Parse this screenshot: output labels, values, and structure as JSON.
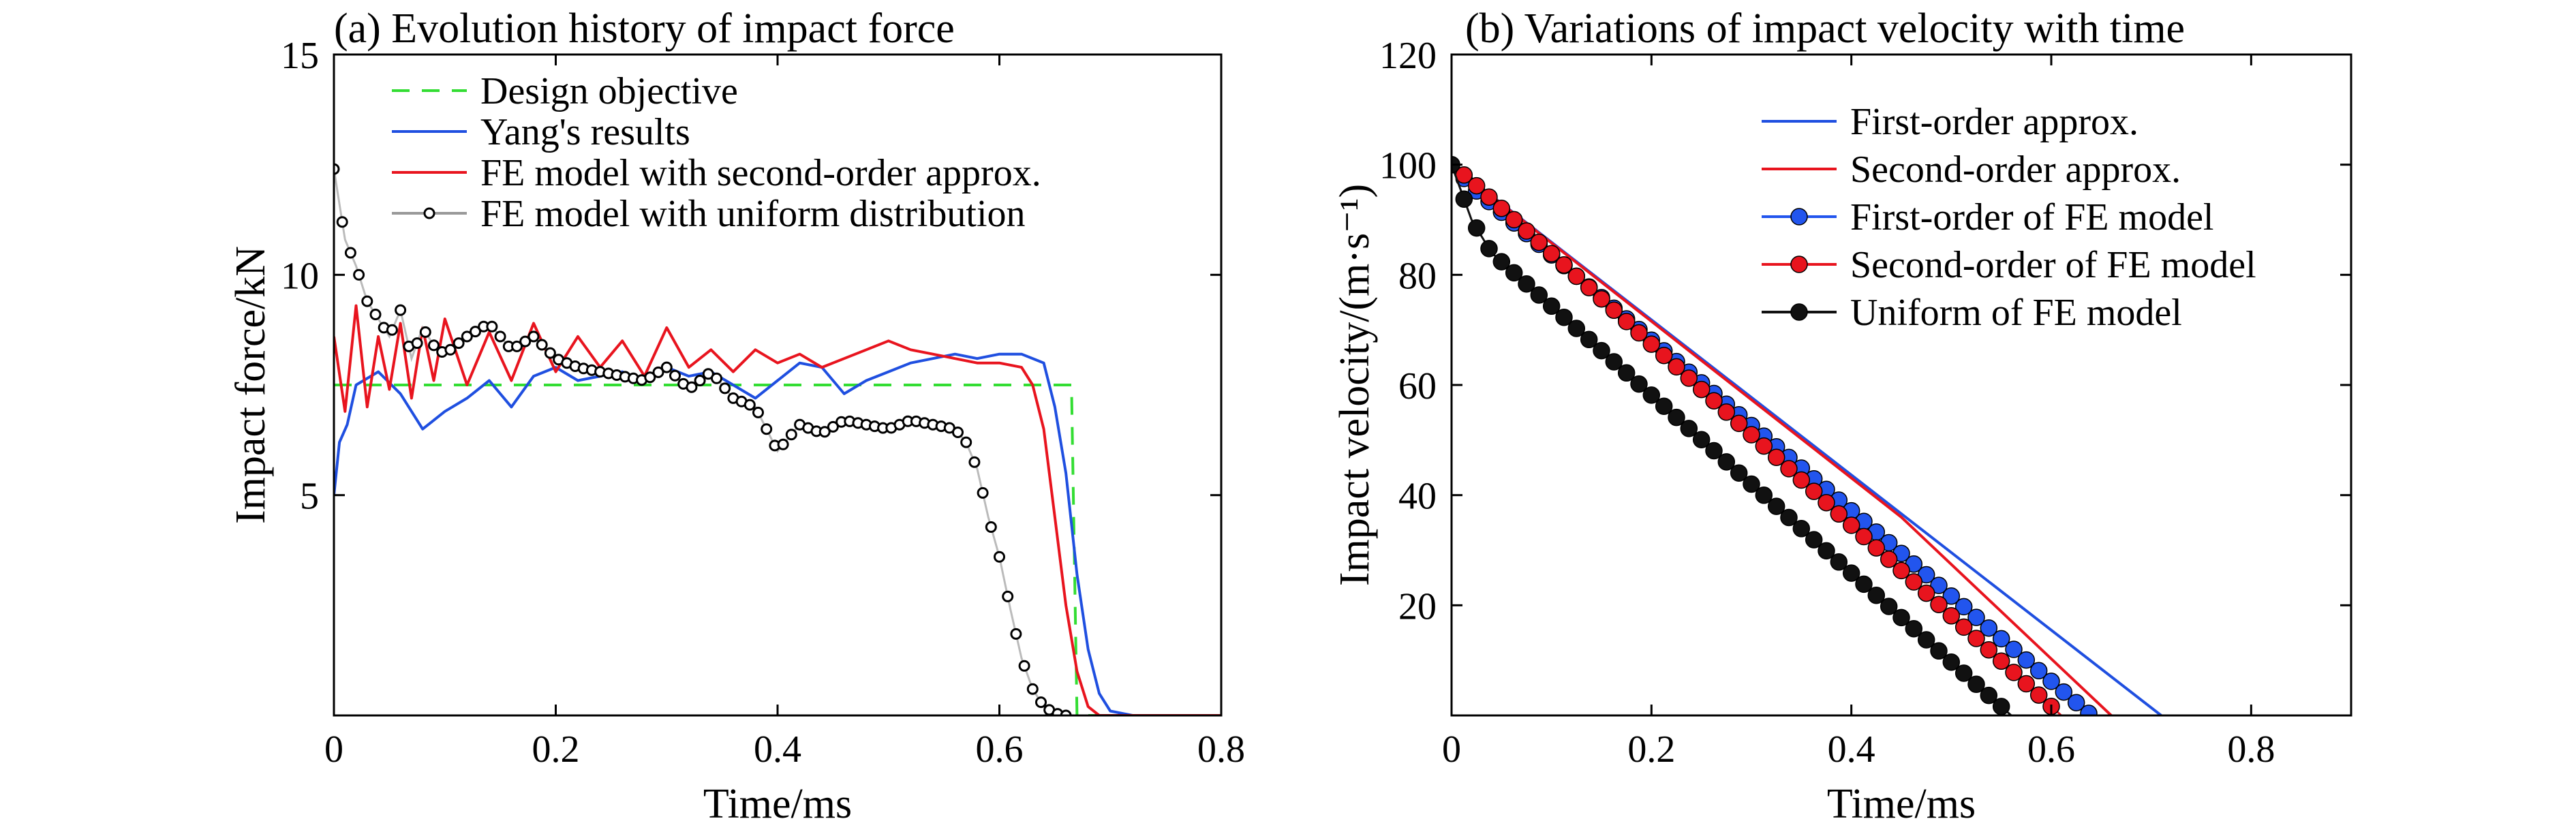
{
  "chart_data": [
    {
      "type": "line",
      "title": "(a) Evolution history of impact force",
      "xlabel": "Time/ms",
      "ylabel": "Impact force/kN",
      "xlim": [
        0,
        0.8
      ],
      "ylim": [
        0,
        15
      ],
      "xticks": [
        "0",
        "0.2",
        "0.4",
        "0.6",
        "0.8"
      ],
      "yticks": [
        "5",
        "10",
        "15"
      ],
      "grid": false,
      "legend": "top",
      "colors": {
        "design": "#33dd33",
        "yang": "#1f4fe0",
        "second": "#e8141e",
        "uniform": "#999999"
      },
      "series": [
        {
          "name": "Design objective",
          "style": "dashed",
          "points": [
            [
              0,
              7.5
            ],
            [
              0.665,
              7.5
            ],
            [
              0.67,
              0.0
            ],
            [
              0.8,
              0.0
            ]
          ]
        },
        {
          "name": "Yang's results",
          "style": "solid",
          "points": [
            [
              0.0,
              5.0
            ],
            [
              0.005,
              6.2
            ],
            [
              0.012,
              6.6
            ],
            [
              0.02,
              7.5
            ],
            [
              0.04,
              7.8
            ],
            [
              0.06,
              7.3
            ],
            [
              0.08,
              6.5
            ],
            [
              0.1,
              6.9
            ],
            [
              0.12,
              7.2
            ],
            [
              0.14,
              7.6
            ],
            [
              0.16,
              7.0
            ],
            [
              0.18,
              7.7
            ],
            [
              0.2,
              7.9
            ],
            [
              0.22,
              7.6
            ],
            [
              0.24,
              7.7
            ],
            [
              0.26,
              7.8
            ],
            [
              0.28,
              7.6
            ],
            [
              0.3,
              7.9
            ],
            [
              0.32,
              7.7
            ],
            [
              0.34,
              7.8
            ],
            [
              0.36,
              7.5
            ],
            [
              0.38,
              7.2
            ],
            [
              0.4,
              7.6
            ],
            [
              0.42,
              8.0
            ],
            [
              0.44,
              7.9
            ],
            [
              0.46,
              7.3
            ],
            [
              0.48,
              7.6
            ],
            [
              0.5,
              7.8
            ],
            [
              0.52,
              8.0
            ],
            [
              0.54,
              8.1
            ],
            [
              0.56,
              8.2
            ],
            [
              0.58,
              8.1
            ],
            [
              0.6,
              8.2
            ],
            [
              0.62,
              8.2
            ],
            [
              0.64,
              8.0
            ],
            [
              0.65,
              7.0
            ],
            [
              0.66,
              5.5
            ],
            [
              0.67,
              3.2
            ],
            [
              0.68,
              1.5
            ],
            [
              0.69,
              0.5
            ],
            [
              0.7,
              0.1
            ],
            [
              0.72,
              0.0
            ],
            [
              0.8,
              0.0
            ]
          ]
        },
        {
          "name": "FE model with second-order approx.",
          "style": "solid",
          "points": [
            [
              0.0,
              8.6
            ],
            [
              0.01,
              6.9
            ],
            [
              0.02,
              9.3
            ],
            [
              0.03,
              7.0
            ],
            [
              0.04,
              8.6
            ],
            [
              0.05,
              7.4
            ],
            [
              0.06,
              8.9
            ],
            [
              0.07,
              7.2
            ],
            [
              0.08,
              8.8
            ],
            [
              0.09,
              7.6
            ],
            [
              0.1,
              9.0
            ],
            [
              0.12,
              7.5
            ],
            [
              0.14,
              8.7
            ],
            [
              0.16,
              7.6
            ],
            [
              0.18,
              8.9
            ],
            [
              0.2,
              7.8
            ],
            [
              0.22,
              8.6
            ],
            [
              0.24,
              7.9
            ],
            [
              0.26,
              8.5
            ],
            [
              0.28,
              7.7
            ],
            [
              0.3,
              8.8
            ],
            [
              0.32,
              7.9
            ],
            [
              0.34,
              8.3
            ],
            [
              0.36,
              7.8
            ],
            [
              0.38,
              8.3
            ],
            [
              0.4,
              8.0
            ],
            [
              0.42,
              8.2
            ],
            [
              0.44,
              7.9
            ],
            [
              0.46,
              8.1
            ],
            [
              0.48,
              8.3
            ],
            [
              0.5,
              8.5
            ],
            [
              0.52,
              8.3
            ],
            [
              0.54,
              8.2
            ],
            [
              0.56,
              8.1
            ],
            [
              0.58,
              8.0
            ],
            [
              0.6,
              8.0
            ],
            [
              0.62,
              7.9
            ],
            [
              0.63,
              7.5
            ],
            [
              0.64,
              6.5
            ],
            [
              0.65,
              4.5
            ],
            [
              0.66,
              2.5
            ],
            [
              0.67,
              1.0
            ],
            [
              0.68,
              0.2
            ],
            [
              0.69,
              0.0
            ],
            [
              0.8,
              0.0
            ]
          ]
        },
        {
          "name": "FE model with uniform distribution",
          "style": "markers",
          "points": [
            [
              0.0,
              12.4
            ],
            [
              0.01,
              10.8
            ],
            [
              0.02,
              10.2
            ],
            [
              0.03,
              9.4
            ],
            [
              0.04,
              9.0
            ],
            [
              0.05,
              8.6
            ],
            [
              0.06,
              9.2
            ],
            [
              0.07,
              8.1
            ],
            [
              0.08,
              8.8
            ],
            [
              0.09,
              8.4
            ],
            [
              0.1,
              8.2
            ],
            [
              0.12,
              8.6
            ],
            [
              0.14,
              8.9
            ],
            [
              0.16,
              8.3
            ],
            [
              0.18,
              8.6
            ],
            [
              0.2,
              8.1
            ],
            [
              0.22,
              7.9
            ],
            [
              0.24,
              7.8
            ],
            [
              0.26,
              7.7
            ],
            [
              0.28,
              7.6
            ],
            [
              0.3,
              7.9
            ],
            [
              0.32,
              7.4
            ],
            [
              0.34,
              7.8
            ],
            [
              0.36,
              7.2
            ],
            [
              0.38,
              7.0
            ],
            [
              0.4,
              6.0
            ],
            [
              0.42,
              6.6
            ],
            [
              0.44,
              6.4
            ],
            [
              0.46,
              6.7
            ],
            [
              0.48,
              6.6
            ],
            [
              0.5,
              6.5
            ],
            [
              0.52,
              6.7
            ],
            [
              0.54,
              6.6
            ],
            [
              0.56,
              6.5
            ],
            [
              0.57,
              6.2
            ],
            [
              0.58,
              5.6
            ],
            [
              0.59,
              4.5
            ],
            [
              0.6,
              3.6
            ],
            [
              0.61,
              2.4
            ],
            [
              0.62,
              1.3
            ],
            [
              0.63,
              0.6
            ],
            [
              0.64,
              0.2
            ],
            [
              0.65,
              0.05
            ],
            [
              0.66,
              0.0
            ],
            [
              0.8,
              0.0
            ]
          ]
        }
      ]
    },
    {
      "type": "line",
      "title": "(b) Variations of impact velocity with time",
      "xlabel": "Time/ms",
      "ylabel": "Impact velocity/(m·s⁻¹)",
      "xlim": [
        0,
        0.9
      ],
      "ylim": [
        0,
        120
      ],
      "xticks": [
        "0",
        "0.2",
        "0.4",
        "0.6",
        "0.8"
      ],
      "yticks": [
        "20",
        "40",
        "60",
        "80",
        "100",
        "120"
      ],
      "grid": false,
      "legend": "top-right",
      "colors": {
        "first_approx": "#1f4fe0",
        "second_approx": "#e8141e",
        "first_fe": "#2255ee",
        "second_fe": "#e8141e",
        "uniform_fe": "#111111"
      },
      "series": [
        {
          "name": "First-order approx.",
          "style": "solid",
          "points": [
            [
              0.0,
              100.0
            ],
            [
              0.71,
              0.0
            ]
          ]
        },
        {
          "name": "Second-order approx.",
          "style": "solid",
          "points": [
            [
              0.0,
              100.0
            ],
            [
              0.45,
              36.0
            ],
            [
              0.66,
              0.0
            ]
          ]
        },
        {
          "name": "First-order of FE model",
          "style": "markers",
          "points": [
            [
              0.0,
              100.0
            ],
            [
              0.02,
              96.0
            ],
            [
              0.64,
              0.0
            ]
          ]
        },
        {
          "name": "Second-order of FE model",
          "style": "markers",
          "points": [
            [
              0.0,
              100.0
            ],
            [
              0.02,
              97.0
            ],
            [
              0.61,
              0.0
            ]
          ]
        },
        {
          "name": "Uniform of FE model",
          "style": "markers",
          "points": [
            [
              0.0,
              100.0
            ],
            [
              0.02,
              90.0
            ],
            [
              0.04,
              84.0
            ],
            [
              0.56,
              0.0
            ]
          ]
        }
      ]
    }
  ]
}
